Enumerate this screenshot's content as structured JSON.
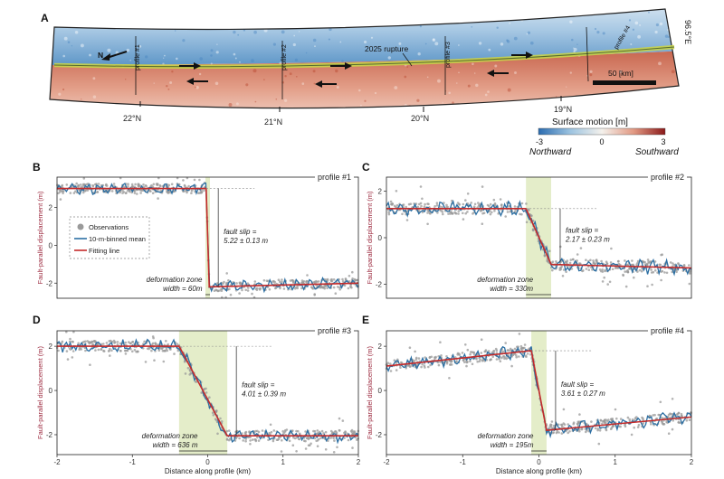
{
  "panel_letters": {
    "A": "A",
    "B": "B",
    "C": "C",
    "D": "D",
    "E": "E"
  },
  "map": {
    "rupture_label": "2025 rupture",
    "north_label": "N",
    "longitude_label": "96.5°E",
    "scale_bar_label": "50 [km]",
    "latitudes": [
      "22°N",
      "21°N",
      "20°N",
      "19°N"
    ],
    "profile_labels": [
      "profile #1",
      "profile #2",
      "profile #3",
      "profile #4"
    ]
  },
  "colorbar": {
    "title": "Surface motion [m]",
    "min_label": "-3",
    "mid_label": "0",
    "max_label": "3",
    "left_label": "Northward",
    "right_label": "Southward",
    "colors": [
      "#2b6cb0",
      "#9cc3e0",
      "#f4f1ec",
      "#e29a84",
      "#8b1a1a"
    ]
  },
  "legend": {
    "observations": "Observations",
    "binned": "10-m-binned mean",
    "fit": "Fitting line"
  },
  "chart_data": [
    {
      "type": "scatter",
      "panel": "B",
      "title": "profile #1",
      "ylabel": "Fault-parallel displacement (m)",
      "xlabel": "",
      "xlim": [
        -2,
        2
      ],
      "ylim": [
        -2.8,
        3.6
      ],
      "yticks": [
        "2",
        "0",
        "-2"
      ],
      "xticks": [],
      "fault_slip_line1": "fault slip =",
      "fault_slip_line2": "5.22 ± 0.13 m",
      "deformation_line1": "deformation zone",
      "deformation_line2": "width = 60m",
      "fit": {
        "x": [
          -2,
          -0.02,
          0.02,
          2
        ],
        "y": [
          3.0,
          3.0,
          -2.2,
          -2.0
        ]
      },
      "zone": [
        -0.03,
        0.03
      ],
      "colors": {
        "obs": "#9a9a9a",
        "binned": "#2c6fa3",
        "fit": "#c42a2a",
        "zone": "#e4edc9"
      }
    },
    {
      "type": "scatter",
      "panel": "C",
      "title": "profile #2",
      "ylabel": "Fault-parallel displacement (m)",
      "xlabel": "",
      "xlim": [
        -2,
        2
      ],
      "ylim": [
        -2.6,
        2.6
      ],
      "yticks": [
        "2",
        "0",
        "-2"
      ],
      "xticks": [],
      "fault_slip_line1": "fault slip =",
      "fault_slip_line2": "2.17 ± 0.23 m",
      "deformation_line1": "deformation zone",
      "deformation_line2": "width = 330m",
      "fit": {
        "x": [
          -2,
          -0.17,
          0.16,
          2
        ],
        "y": [
          1.25,
          1.25,
          -1.15,
          -1.3
        ]
      },
      "zone": [
        -0.17,
        0.16
      ],
      "colors": {
        "obs": "#9a9a9a",
        "binned": "#2c6fa3",
        "fit": "#c42a2a",
        "zone": "#e4edc9"
      }
    },
    {
      "type": "scatter",
      "panel": "D",
      "title": "profile #3",
      "ylabel": "Fault-parallel displacement (m)",
      "xlabel": "Distance along profile (km)",
      "xlim": [
        -2,
        2
      ],
      "ylim": [
        -2.9,
        2.7
      ],
      "yticks": [
        "2",
        "0",
        "-2"
      ],
      "xticks": [
        "-2",
        "-1",
        "0",
        "1",
        "2"
      ],
      "fault_slip_line1": "fault slip =",
      "fault_slip_line2": "4.01 ± 0.39 m",
      "deformation_line1": "deformation zone",
      "deformation_line2": "width = 636 m",
      "fit": {
        "x": [
          -2,
          -0.38,
          0.26,
          2
        ],
        "y": [
          2.0,
          2.0,
          -2.05,
          -2.05
        ]
      },
      "zone": [
        -0.38,
        0.26
      ],
      "colors": {
        "obs": "#9a9a9a",
        "binned": "#2c6fa3",
        "fit": "#c42a2a",
        "zone": "#e4edc9"
      }
    },
    {
      "type": "scatter",
      "panel": "E",
      "title": "profile #4",
      "ylabel": "Fault-parallel displacement (m)",
      "xlabel": "Distance along profile (km)",
      "xlim": [
        -2,
        2
      ],
      "ylim": [
        -2.9,
        2.7
      ],
      "yticks": [
        "2",
        "0",
        "-2"
      ],
      "xticks": [
        "-2",
        "-1",
        "0",
        "1",
        "2"
      ],
      "fault_slip_line1": "fault slip =",
      "fault_slip_line2": "3.61 ± 0.27 m",
      "deformation_line1": "deformation zone",
      "deformation_line2": "width = 195m",
      "fit": {
        "x": [
          -2,
          -0.1,
          0.1,
          2
        ],
        "y": [
          1.1,
          1.8,
          -1.8,
          -1.2
        ]
      },
      "zone": [
        -0.1,
        0.1
      ],
      "colors": {
        "obs": "#9a9a9a",
        "binned": "#2c6fa3",
        "fit": "#c42a2a",
        "zone": "#e4edc9"
      }
    }
  ]
}
